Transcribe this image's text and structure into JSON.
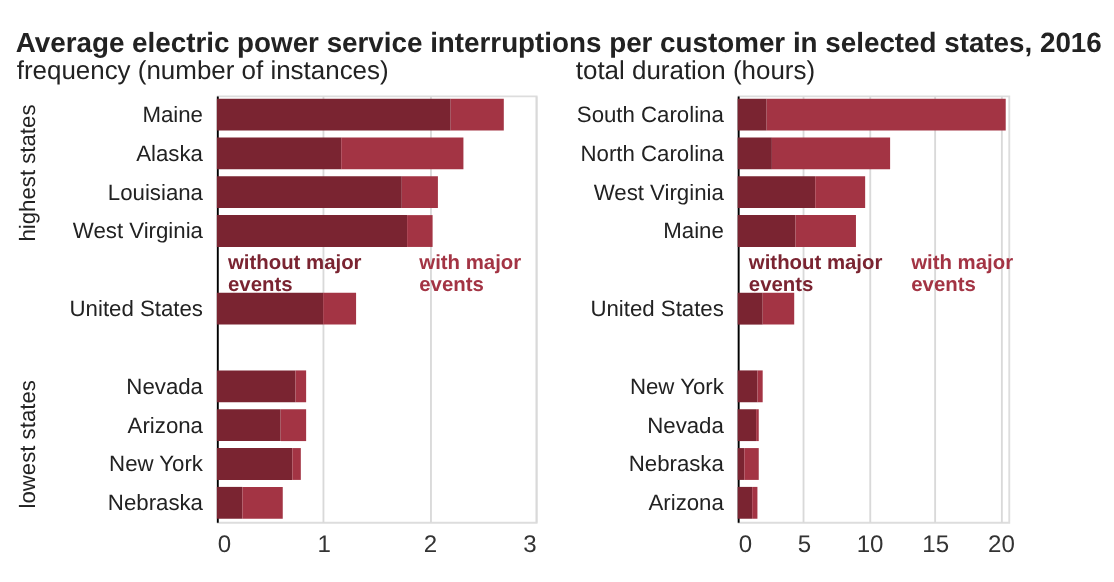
{
  "chart_data": [
    {
      "type": "bar",
      "orientation": "horizontal",
      "stacked": true,
      "title": "Average electric power service interruptions per customer in selected states, 2016",
      "subtitle": "frequency (number of instances)",
      "categories": [
        "Maine",
        "Alaska",
        "Louisiana",
        "West Virginia",
        null,
        "United States",
        null,
        "Nevada",
        "Arizona",
        "New York",
        "Nebraska"
      ],
      "series": [
        {
          "name": "without major events",
          "color": "#7a2431",
          "values": [
            2.2,
            1.17,
            1.74,
            1.79,
            null,
            1.0,
            null,
            0.74,
            0.6,
            0.71,
            0.24
          ]
        },
        {
          "name": "with major events",
          "color": "#a33444",
          "values": [
            0.5,
            1.15,
            0.34,
            0.24,
            null,
            0.31,
            null,
            0.1,
            0.24,
            0.08,
            0.38
          ]
        }
      ],
      "xlim": [
        0,
        3
      ],
      "xticks": [
        0,
        1,
        2,
        3
      ],
      "grid": "x",
      "annotations": [
        "highest states",
        "lowest states"
      ]
    },
    {
      "type": "bar",
      "orientation": "horizontal",
      "stacked": true,
      "subtitle": "total duration (hours)",
      "categories": [
        "South Carolina",
        "North Carolina",
        "West Virginia",
        "Maine",
        null,
        "United States",
        null,
        "New York",
        "Nevada",
        "Nebraska",
        "Arizona"
      ],
      "series": [
        {
          "name": "without major events",
          "color": "#7a2431",
          "values": [
            2.2,
            2.6,
            5.9,
            4.4,
            null,
            1.9,
            null,
            1.5,
            1.4,
            0.5,
            1.1
          ]
        },
        {
          "name": "with major events",
          "color": "#a33444",
          "values": [
            18.2,
            9.0,
            3.8,
            4.6,
            null,
            2.4,
            null,
            0.4,
            0.2,
            1.1,
            0.4
          ]
        }
      ],
      "xlim": [
        0,
        20.6
      ],
      "xticks": [
        0,
        5,
        10,
        15,
        20
      ],
      "grid": "x"
    }
  ]
}
